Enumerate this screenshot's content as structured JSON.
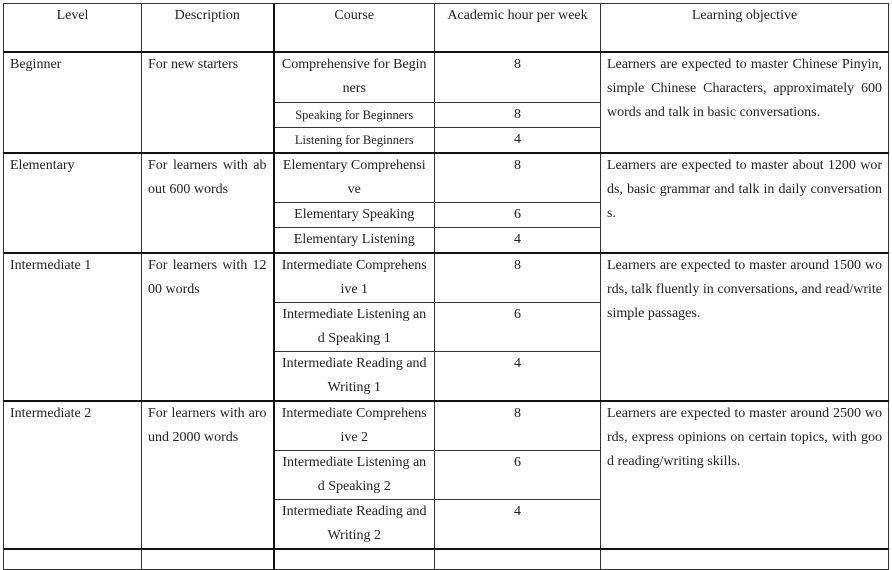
{
  "headers": [
    "Level",
    "Description",
    "Course",
    "Academic hour per week",
    "Learning objective"
  ],
  "levels": [
    {
      "level": "Beginner",
      "description": "For new starters",
      "objective": "Learners are expected to master Chinese Pinyin, simple Chinese Characters, approximately 600 words and talk in basic conversations.",
      "courses": [
        {
          "name": "Comprehensive for Beginners",
          "hours": "8"
        },
        {
          "name": "Speaking for Beginners",
          "hours": "8"
        },
        {
          "name": "Listening for Beginners",
          "hours": "4"
        }
      ]
    },
    {
      "level": "Elementary",
      "description": "For learners with about 600 words",
      "objective": "Learners are expected to master about 1200 words, basic grammar and talk in daily conversations.",
      "courses": [
        {
          "name": "Elementary Comprehensive",
          "hours": "8"
        },
        {
          "name": "Elementary Speaking",
          "hours": "6"
        },
        {
          "name": "Elementary Listening",
          "hours": "4"
        }
      ]
    },
    {
      "level": "Intermediate 1",
      "description": "For learners with 1200 words",
      "objective": "Learners are expected to master around 1500 words, talk fluently in conversations, and read/write simple passages.",
      "courses": [
        {
          "name": "Intermediate Comprehensive 1",
          "hours": "8"
        },
        {
          "name": "Intermediate Listening and Speaking 1",
          "hours": "6"
        },
        {
          "name": "Intermediate Reading and Writing 1",
          "hours": "4"
        }
      ]
    },
    {
      "level": "Intermediate 2",
      "description": "For learners with around 2000 words",
      "objective": "Learners are expected to master around 2500 words, express opinions on certain topics, with good reading/writing skills.",
      "courses": [
        {
          "name": "Intermediate Comprehensive 2",
          "hours": "8"
        },
        {
          "name": "Intermediate Listening and Speaking 2",
          "hours": "6"
        },
        {
          "name": "Intermediate Reading and Writing 2",
          "hours": "4"
        }
      ]
    }
  ]
}
